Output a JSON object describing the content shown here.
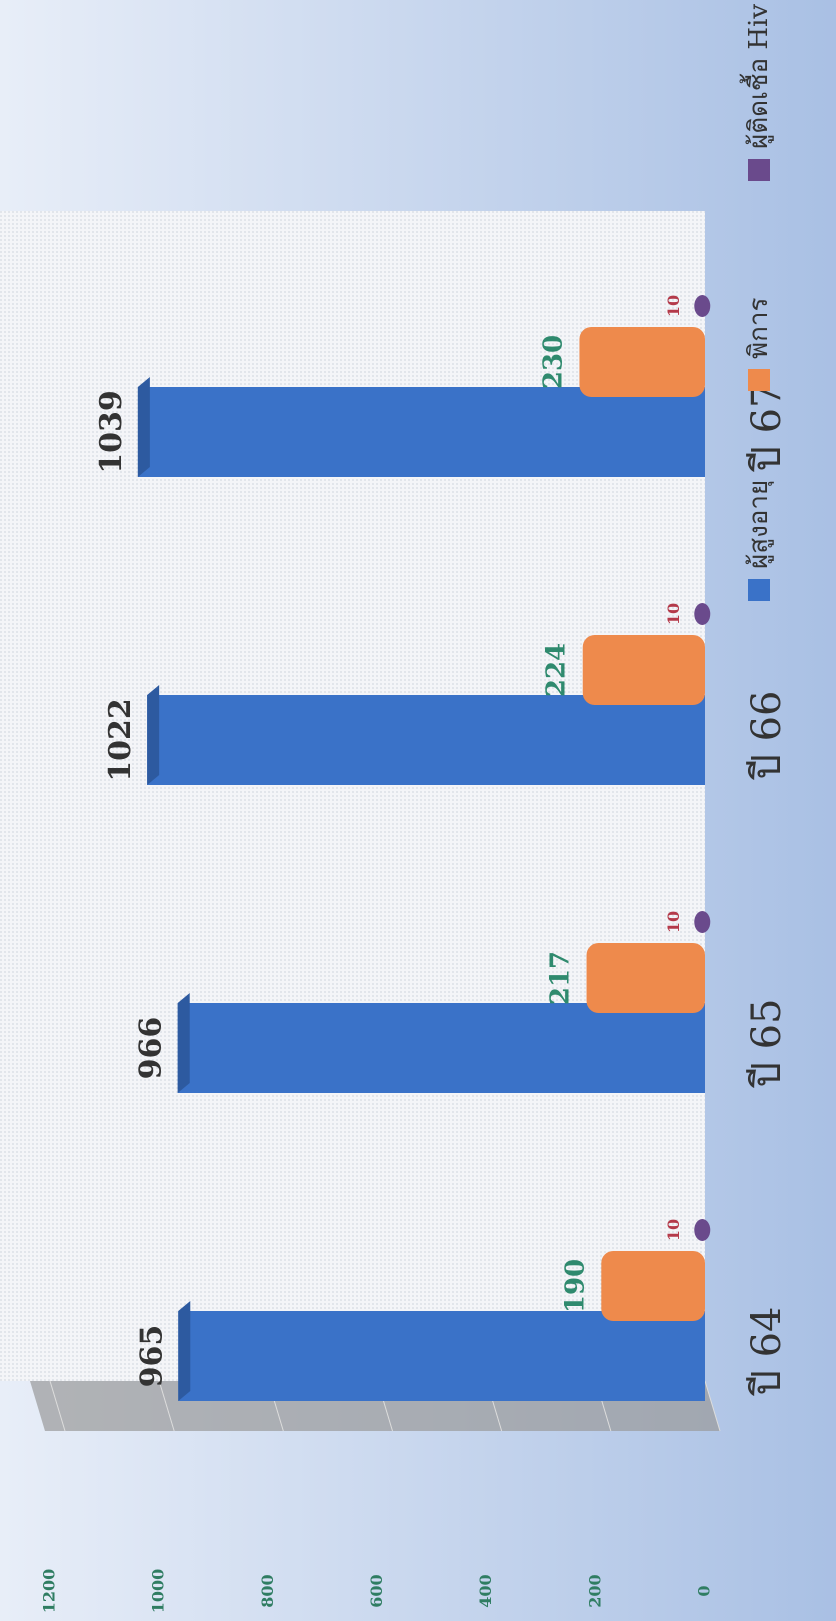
{
  "chart_data": {
    "type": "bar",
    "categories": [
      "ปี 64",
      "ปี 65",
      "ปี 66",
      "ปี 67"
    ],
    "series": [
      {
        "name": "ผู้สูงอายุ",
        "color": "#3a72c8",
        "values": [
          965,
          966,
          1022,
          1039
        ]
      },
      {
        "name": "พิการ",
        "color": "#ee8a4c",
        "values": [
          190,
          217,
          224,
          230
        ]
      },
      {
        "name": "ผู้ติดเชื้อ Hiv",
        "color": "#6a4a8c",
        "values": [
          10,
          10,
          10,
          10
        ]
      }
    ],
    "ylim": [
      0,
      1200
    ],
    "yticks": [
      0,
      200,
      400,
      600,
      800,
      1000,
      1200
    ],
    "grid": true,
    "orientation": "rotated"
  }
}
